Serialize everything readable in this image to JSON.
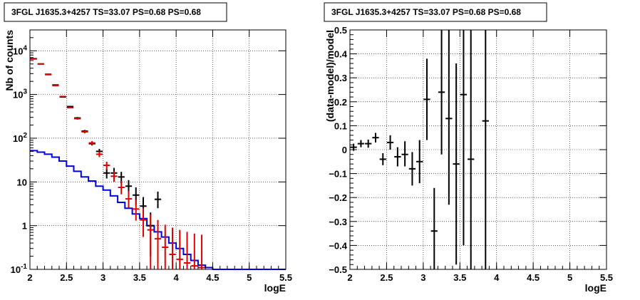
{
  "chart_data": [
    {
      "type": "line",
      "title": "3FGL J1635.3+4257 TS=33.07 PS=0.68 PS=0.68",
      "xlabel": "logE",
      "ylabel": "Nb of counts",
      "xlim": [
        2,
        5.5
      ],
      "ylim": [
        0.1,
        30000
      ],
      "yscale": "log",
      "grid": true,
      "x_ticks": [
        "2",
        "2.5",
        "3",
        "3.5",
        "4",
        "4.5",
        "5",
        "5.5"
      ],
      "y_ticks": [
        "10^{-1}",
        "1",
        "10",
        "10^{2}",
        "10^{3}",
        "10^{4}"
      ],
      "colors": {
        "data": "#000000",
        "model": "#e00000",
        "background": "#0000e0"
      },
      "series": [
        {
          "role": "data",
          "points": [
            {
              "x": 2.05,
              "y": 6600,
              "lo": 6400,
              "hi": 6800
            },
            {
              "x": 2.15,
              "y": 5000,
              "lo": 4850,
              "hi": 5150
            },
            {
              "x": 2.25,
              "y": 2900,
              "lo": 2800,
              "hi": 3000
            },
            {
              "x": 2.35,
              "y": 1650,
              "lo": 1600,
              "hi": 1700
            },
            {
              "x": 2.45,
              "y": 880,
              "lo": 850,
              "hi": 910
            },
            {
              "x": 2.55,
              "y": 530,
              "lo": 510,
              "hi": 550
            },
            {
              "x": 2.65,
              "y": 290,
              "lo": 275,
              "hi": 305
            },
            {
              "x": 2.75,
              "y": 145,
              "lo": 135,
              "hi": 155
            },
            {
              "x": 2.85,
              "y": 75,
              "lo": 68,
              "hi": 82
            },
            {
              "x": 2.95,
              "y": 50,
              "lo": 44,
              "hi": 57
            },
            {
              "x": 3.05,
              "y": 16,
              "lo": 12,
              "hi": 20
            },
            {
              "x": 3.15,
              "y": 16,
              "lo": 12,
              "hi": 21
            },
            {
              "x": 3.25,
              "y": 13,
              "lo": 9.5,
              "hi": 17
            },
            {
              "x": 3.35,
              "y": 8,
              "lo": 5.5,
              "hi": 11
            },
            {
              "x": 3.45,
              "y": 5,
              "lo": 3,
              "hi": 7.5
            },
            {
              "x": 3.55,
              "y": 2.8,
              "lo": 1.6,
              "hi": 4.5
            },
            {
              "x": 3.65,
              "y": 1.0,
              "lo": 0.2,
              "hi": 2.0
            },
            {
              "x": 3.75,
              "y": 4.0,
              "lo": 2.5,
              "hi": 6.0
            }
          ]
        },
        {
          "role": "model",
          "points": [
            {
              "x": 2.05,
              "y": 6500,
              "lo": 6300,
              "hi": 6700
            },
            {
              "x": 2.15,
              "y": 5000,
              "lo": 4850,
              "hi": 5150
            },
            {
              "x": 2.25,
              "y": 2850,
              "lo": 2750,
              "hi": 2950
            },
            {
              "x": 2.35,
              "y": 1600,
              "lo": 1550,
              "hi": 1650
            },
            {
              "x": 2.45,
              "y": 900,
              "lo": 870,
              "hi": 930
            },
            {
              "x": 2.55,
              "y": 500,
              "lo": 480,
              "hi": 520
            },
            {
              "x": 2.65,
              "y": 280,
              "lo": 265,
              "hi": 295
            },
            {
              "x": 2.75,
              "y": 140,
              "lo": 130,
              "hi": 150
            },
            {
              "x": 2.85,
              "y": 78,
              "lo": 70,
              "hi": 86
            },
            {
              "x": 2.95,
              "y": 43,
              "lo": 37,
              "hi": 50
            },
            {
              "x": 3.05,
              "y": 24,
              "lo": 19,
              "hi": 29
            },
            {
              "x": 3.15,
              "y": 13.5,
              "lo": 10,
              "hi": 17.5
            },
            {
              "x": 3.25,
              "y": 7.5,
              "lo": 5.2,
              "hi": 10.5
            },
            {
              "x": 3.35,
              "y": 4.1,
              "lo": 2.6,
              "hi": 6.2
            },
            {
              "x": 3.45,
              "y": 2.4,
              "lo": 1.3,
              "hi": 3.9
            },
            {
              "x": 3.55,
              "y": 1.35,
              "lo": 0.55,
              "hi": 2.5
            },
            {
              "x": 3.65,
              "y": 0.8,
              "lo": 0.1,
              "hi": 1.8
            },
            {
              "x": 3.75,
              "y": 0.5,
              "lo": 0.1,
              "hi": 1.35
            },
            {
              "x": 3.85,
              "y": 0.32,
              "lo": 0.1,
              "hi": 1.05
            },
            {
              "x": 3.95,
              "y": 0.22,
              "lo": 0.1,
              "hi": 0.9
            },
            {
              "x": 4.05,
              "y": 0.17,
              "lo": 0.1,
              "hi": 0.8
            },
            {
              "x": 4.15,
              "y": 0.14,
              "lo": 0.1,
              "hi": 0.72
            },
            {
              "x": 4.25,
              "y": 0.12,
              "lo": 0.1,
              "hi": 0.66
            },
            {
              "x": 4.35,
              "y": 0.11,
              "lo": 0.1,
              "hi": 0.62
            }
          ]
        },
        {
          "role": "background",
          "style": "step",
          "edges": [
            2.0,
            2.1,
            2.2,
            2.3,
            2.4,
            2.5,
            2.6,
            2.7,
            2.8,
            2.9,
            3.0,
            3.1,
            3.2,
            3.3,
            3.4,
            3.5,
            3.6,
            3.7,
            3.8,
            3.9,
            4.0,
            4.1,
            4.2,
            4.3,
            4.4,
            4.5,
            5.5
          ],
          "values": [
            52,
            48,
            43,
            37,
            30,
            23,
            17.5,
            13,
            10.5,
            8,
            6.5,
            4.8,
            3.4,
            2.5,
            1.85,
            1.45,
            1.0,
            0.72,
            0.55,
            0.4,
            0.3,
            0.22,
            0.16,
            0.125,
            0.11,
            0.1
          ]
        }
      ]
    },
    {
      "type": "scatter",
      "title": "3FGL J1635.3+4257 TS=33.07 PS=0.68 PS=0.68",
      "xlabel": "logE",
      "ylabel": "(data-model)/model",
      "xlim": [
        2,
        5.5
      ],
      "ylim": [
        -0.5,
        0.5
      ],
      "grid": true,
      "x_ticks": [
        "2",
        "2.5",
        "3",
        "3.5",
        "4",
        "4.5",
        "5",
        "5.5"
      ],
      "y_ticks": [
        "−0.5",
        "−0.4",
        "−0.3",
        "−0.2",
        "−0.1",
        "0",
        "0.1",
        "0.2",
        "0.3",
        "0.4",
        "0.5"
      ],
      "series": [
        {
          "role": "residuals",
          "points": [
            {
              "x": 2.05,
              "y": 0.01,
              "lo": -0.005,
              "hi": 0.025
            },
            {
              "x": 2.15,
              "y": 0.025,
              "lo": 0.01,
              "hi": 0.04
            },
            {
              "x": 2.25,
              "y": 0.025,
              "lo": 0.008,
              "hi": 0.042
            },
            {
              "x": 2.35,
              "y": 0.05,
              "lo": 0.03,
              "hi": 0.07
            },
            {
              "x": 2.45,
              "y": -0.04,
              "lo": -0.065,
              "hi": -0.015
            },
            {
              "x": 2.55,
              "y": 0.03,
              "lo": 0.0,
              "hi": 0.06
            },
            {
              "x": 2.65,
              "y": -0.03,
              "lo": -0.07,
              "hi": 0.01
            },
            {
              "x": 2.75,
              "y": -0.02,
              "lo": -0.07,
              "hi": 0.035
            },
            {
              "x": 2.85,
              "y": -0.08,
              "lo": -0.15,
              "hi": -0.01
            },
            {
              "x": 2.95,
              "y": -0.05,
              "lo": -0.14,
              "hi": 0.04
            },
            {
              "x": 3.05,
              "y": 0.21,
              "lo": 0.04,
              "hi": 0.38
            },
            {
              "x": 3.15,
              "y": -0.34,
              "lo": -0.52,
              "hi": -0.16
            },
            {
              "x": 3.25,
              "y": 0.24,
              "lo": -0.02,
              "hi": 0.52
            },
            {
              "x": 3.35,
              "y": 0.13,
              "lo": -0.23,
              "hi": 0.52
            },
            {
              "x": 3.45,
              "y": -0.06,
              "lo": -0.48,
              "hi": 0.36
            },
            {
              "x": 3.55,
              "y": 0.23,
              "lo": -0.4,
              "hi": 0.52
            },
            {
              "x": 3.65,
              "y": -0.04,
              "lo": -0.52,
              "hi": 0.52
            },
            {
              "x": 3.85,
              "y": 0.12,
              "lo": -0.52,
              "hi": 0.52
            }
          ]
        }
      ]
    }
  ]
}
